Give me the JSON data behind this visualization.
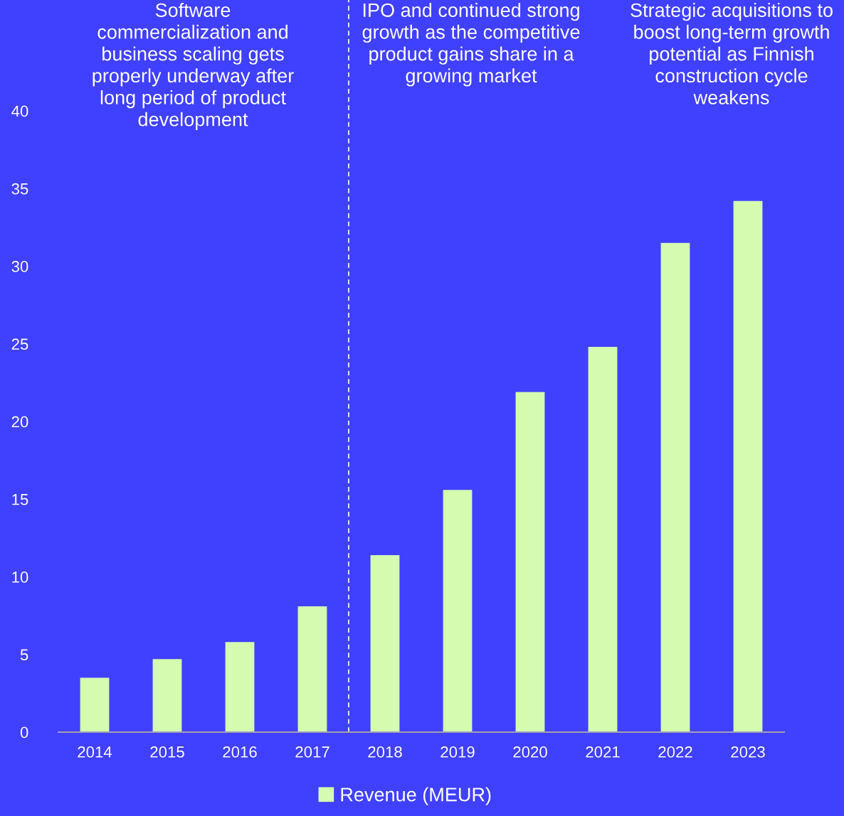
{
  "chart_data": {
    "type": "bar",
    "categories": [
      "2014",
      "2015",
      "2016",
      "2017",
      "2018",
      "2019",
      "2020",
      "2021",
      "2022",
      "2023"
    ],
    "series": [
      {
        "name": "Revenue (MEUR)",
        "color": "#d4fbb0",
        "values": [
          3.5,
          4.7,
          5.8,
          8.1,
          11.4,
          15.6,
          21.9,
          24.8,
          31.5,
          34.2
        ]
      }
    ],
    "ylim": [
      0,
      40
    ],
    "yticks": [
      0,
      5,
      10,
      15,
      20,
      25,
      30,
      35,
      40
    ],
    "annotations": [
      "Software\ncommercialization and\nbusiness scaling gets\nproperly underway after\nlong period of product\ndevelopment",
      "IPO and continued strong\ngrowth as the competitive\nproduct gains share in a\ngrowing market",
      "Strategic acquisitions to\nboost long-term growth\npotential as Finnish\nconstruction cycle\nweakens"
    ],
    "grid": false,
    "legend": "bottom"
  }
}
